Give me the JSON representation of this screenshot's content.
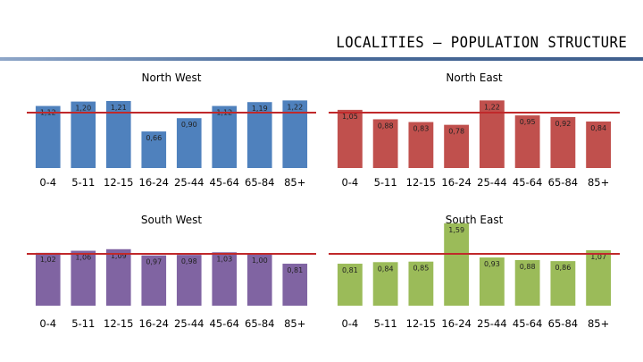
{
  "page_title": "LOCALITIES – POPULATION STRUCTURE",
  "colors": {
    "title_rule": "#4a6c9b",
    "reference_line": "#c0292b",
    "north_west": "#4f81bd",
    "north_east": "#c0504d",
    "south_west": "#8064a2",
    "south_east": "#9bbb59"
  },
  "chart_data": [
    {
      "type": "bar",
      "title": "North West",
      "categories": [
        "0-4",
        "5-11",
        "12-15",
        "16-24",
        "25-44",
        "45-64",
        "65-84",
        "85+"
      ],
      "values": [
        1.12,
        1.2,
        1.21,
        0.66,
        0.9,
        1.12,
        1.19,
        1.22
      ],
      "labels": [
        "1,12",
        "1,20",
        "1,21",
        "0,66",
        "0,90",
        "1,12",
        "1,19",
        "1,22"
      ],
      "reference_line": 1.0,
      "color": "#4f81bd"
    },
    {
      "type": "bar",
      "title": "North East",
      "categories": [
        "0-4",
        "5-11",
        "12-15",
        "16-24",
        "25-44",
        "45-64",
        "65-84",
        "85+"
      ],
      "values": [
        1.05,
        0.88,
        0.83,
        0.78,
        1.22,
        0.95,
        0.92,
        0.84
      ],
      "labels": [
        "1,05",
        "0,88",
        "0,83",
        "0,78",
        "1,22",
        "0,95",
        "0,92",
        "0,84"
      ],
      "reference_line": 1.0,
      "color": "#c0504d"
    },
    {
      "type": "bar",
      "title": "South West",
      "categories": [
        "0-4",
        "5-11",
        "12-15",
        "16-24",
        "25-44",
        "45-64",
        "65-84",
        "85+"
      ],
      "values": [
        1.02,
        1.06,
        1.09,
        0.97,
        0.98,
        1.03,
        1.0,
        0.81
      ],
      "labels": [
        "1,02",
        "1,06",
        "1,09",
        "0,97",
        "0,98",
        "1,03",
        "1,00",
        "0,81"
      ],
      "reference_line": 1.0,
      "color": "#8064a2"
    },
    {
      "type": "bar",
      "title": "South East",
      "categories": [
        "0-4",
        "5-11",
        "12-15",
        "16-24",
        "25-44",
        "45-64",
        "65-84",
        "85+"
      ],
      "values": [
        0.81,
        0.84,
        0.85,
        1.59,
        0.93,
        0.88,
        0.86,
        1.07
      ],
      "labels": [
        "0,81",
        "0,84",
        "0,85",
        "1,59",
        "0,93",
        "0,88",
        "0,86",
        "1,07"
      ],
      "reference_line": 1.0,
      "color": "#9bbb59"
    }
  ]
}
